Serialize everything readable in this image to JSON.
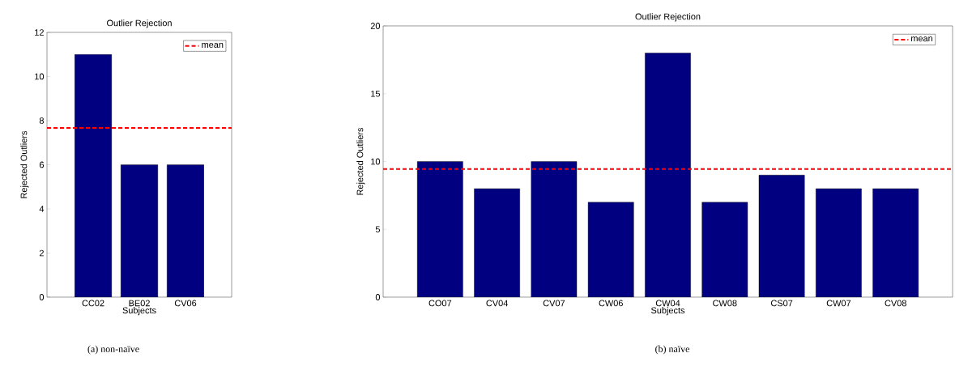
{
  "chart_data": [
    {
      "type": "bar",
      "title": "Outlier Rejection",
      "xlabel": "Subjects",
      "ylabel": "Rejected Outliers",
      "categories": [
        "CC02",
        "BE02",
        "CV06"
      ],
      "values": [
        11,
        6,
        6
      ],
      "color": "#000080",
      "ylim": [
        0,
        12
      ],
      "yticks": [
        0,
        2,
        4,
        6,
        8,
        10,
        12
      ],
      "ref_lines": [
        {
          "axis": "y",
          "value": 7.67,
          "label": "mean",
          "color": "#ff0000",
          "line_style": "dashed"
        }
      ],
      "legend": "top right",
      "annotations": [
        "(a) non-naïve"
      ]
    },
    {
      "type": "bar",
      "title": "Outlier Rejection",
      "xlabel": "Subjects",
      "ylabel": "Rejected Outliers",
      "categories": [
        "CO07",
        "CV04",
        "CV07",
        "CW06",
        "CW04",
        "CW08",
        "CS07",
        "CW07",
        "CV08"
      ],
      "values": [
        10,
        8,
        10,
        7,
        18,
        7,
        9,
        8,
        8
      ],
      "color": "#000080",
      "ylim": [
        0,
        20
      ],
      "yticks": [
        0,
        5,
        10,
        15,
        20
      ],
      "ref_lines": [
        {
          "axis": "y",
          "value": 9.44,
          "label": "mean",
          "color": "#ff0000",
          "line_style": "dashed"
        }
      ],
      "legend": "top right",
      "annotations": [
        "(b) naïve"
      ]
    }
  ]
}
